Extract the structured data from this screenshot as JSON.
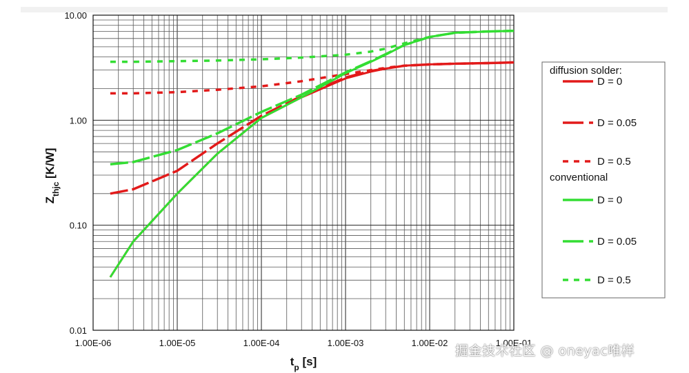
{
  "chart_data": {
    "type": "line",
    "xscale": "log",
    "yscale": "log",
    "xlim": [
      1e-06,
      0.1
    ],
    "ylim": [
      0.01,
      10
    ],
    "xlabel": "t",
    "xlabel_sub": "p",
    "xlabel_unit": " [s]",
    "ylabel": "Z",
    "ylabel_sub": "thjc",
    "ylabel_unit": " [K/W]",
    "x_ticks": [
      1e-06,
      1e-05,
      0.0001,
      0.001,
      0.01,
      0.1
    ],
    "x_tick_labels": [
      "1.00E-06",
      "1.00E-05",
      "1.00E-04",
      "1.00E-03",
      "1.00E-02",
      "1.00E-01"
    ],
    "y_ticks": [
      0.01,
      0.1,
      1,
      10
    ],
    "y_tick_labels": [
      "0.01",
      "0.10",
      "1.00",
      "10.00"
    ],
    "grid": true,
    "legend_position": "right",
    "legend_groups": [
      "diffusion solder:",
      "conventional"
    ],
    "series": [
      {
        "name": "D = 0",
        "group": 0,
        "color": "#e21a1a",
        "dash": "solid",
        "x": [
          1.6e-06,
          3e-06,
          1e-05,
          3e-05,
          0.0001,
          0.0003,
          0.001,
          0.002,
          0.003,
          0.005,
          0.01,
          0.02,
          0.05,
          0.1
        ],
        "y": [
          0.032,
          0.07,
          0.2,
          0.48,
          1.05,
          1.65,
          2.5,
          2.9,
          3.1,
          3.3,
          3.4,
          3.45,
          3.5,
          3.55
        ]
      },
      {
        "name": "D = 0.05",
        "group": 0,
        "color": "#e21a1a",
        "dash": "long",
        "x": [
          1.6e-06,
          3e-06,
          1e-05,
          3e-05,
          0.0001,
          0.0003,
          0.001,
          0.002,
          0.003,
          0.005,
          0.01,
          0.02,
          0.05,
          0.1
        ],
        "y": [
          0.2,
          0.22,
          0.33,
          0.6,
          1.1,
          1.7,
          2.55,
          2.95,
          3.1,
          3.3,
          3.4,
          3.45,
          3.5,
          3.55
        ]
      },
      {
        "name": "D = 0.5",
        "group": 0,
        "color": "#e21a1a",
        "dash": "short",
        "x": [
          1.6e-06,
          3e-06,
          1e-05,
          3e-05,
          0.0001,
          0.0003,
          0.001,
          0.002,
          0.003,
          0.005,
          0.01,
          0.02,
          0.05,
          0.1
        ],
        "y": [
          1.8,
          1.8,
          1.85,
          1.95,
          2.1,
          2.35,
          2.75,
          3.0,
          3.15,
          3.3,
          3.4,
          3.45,
          3.5,
          3.55
        ]
      },
      {
        "name": "D = 0",
        "group": 1,
        "color": "#33dd33",
        "dash": "solid",
        "x": [
          1.6e-06,
          3e-06,
          1e-05,
          3e-05,
          0.0001,
          0.0003,
          0.001,
          0.002,
          0.003,
          0.005,
          0.01,
          0.02,
          0.05,
          0.1
        ],
        "y": [
          0.032,
          0.07,
          0.2,
          0.48,
          1.05,
          1.65,
          2.8,
          3.6,
          4.2,
          5.2,
          6.2,
          6.8,
          7.0,
          7.1
        ]
      },
      {
        "name": "D = 0.05",
        "group": 1,
        "color": "#33dd33",
        "dash": "long",
        "x": [
          1.6e-06,
          3e-06,
          1e-05,
          3e-05,
          0.0001,
          0.0003,
          0.001,
          0.002,
          0.003,
          0.005,
          0.01,
          0.02,
          0.05,
          0.1
        ],
        "y": [
          0.38,
          0.4,
          0.52,
          0.75,
          1.2,
          1.75,
          2.85,
          3.65,
          4.25,
          5.2,
          6.2,
          6.8,
          7.0,
          7.1
        ]
      },
      {
        "name": "D = 0.5",
        "group": 1,
        "color": "#33dd33",
        "dash": "short",
        "x": [
          1.6e-06,
          3e-06,
          1e-05,
          3e-05,
          0.0001,
          0.0003,
          0.001,
          0.002,
          0.003,
          0.005,
          0.01,
          0.02,
          0.05,
          0.1
        ],
        "y": [
          3.6,
          3.6,
          3.65,
          3.7,
          3.8,
          3.95,
          4.2,
          4.5,
          4.8,
          5.4,
          6.2,
          6.8,
          7.0,
          7.1
        ]
      }
    ]
  },
  "watermark": "掘金技术社区 @ oneyac唯样"
}
